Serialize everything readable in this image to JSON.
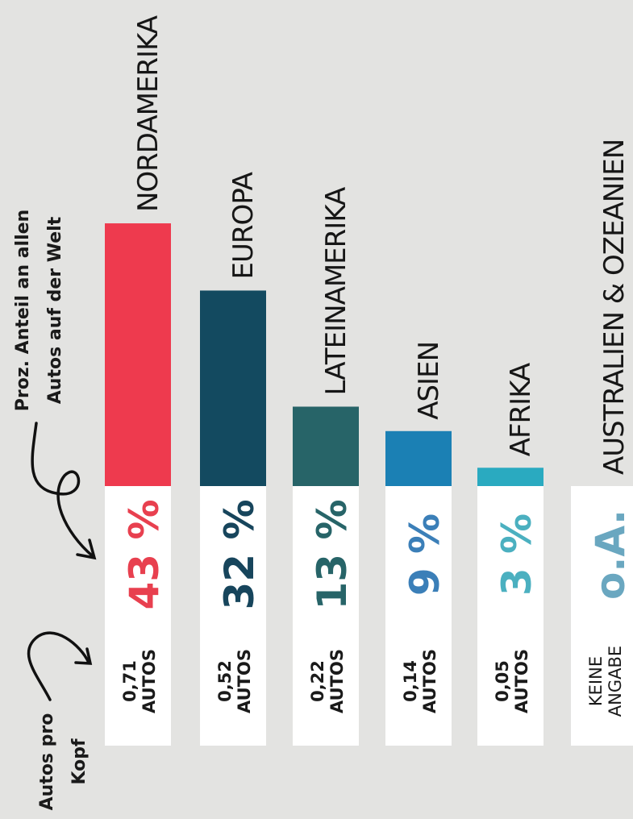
{
  "chart_data": {
    "type": "bar",
    "annotations": [
      [
        "Proz. Anteil an allen",
        "Autos auf der Welt"
      ],
      [
        "Autos pro",
        "Kopf"
      ]
    ],
    "categories": [
      "NORDAMERIKA",
      "EUROPA",
      "LATEINAMERIKA",
      "ASIEN",
      "AFRIKA",
      "AUSTRALIEN & OZEANIEN"
    ],
    "values": [
      43,
      32,
      13,
      9,
      3,
      null
    ],
    "value_labels": [
      "43 %",
      "32 %",
      "13 %",
      "9 %",
      "3 %",
      "o.A."
    ],
    "colors": [
      "#ee3a4e",
      "#134a60",
      "#276468",
      "#1b80b4",
      "#2aaac0",
      "#6aa7c0"
    ],
    "label_colors": [
      "#e8404f",
      "#17455c",
      "#276468",
      "#3b7fb8",
      "#4bb0c0",
      "#6aa7c0"
    ],
    "per_capita": [
      0.71,
      0.52,
      0.22,
      0.14,
      0.05,
      null
    ],
    "per_capita_labels": [
      [
        "0,71",
        "AUTOS"
      ],
      [
        "0,52",
        "AUTOS"
      ],
      [
        "0,22",
        "AUTOS"
      ],
      [
        "0,14",
        "AUTOS"
      ],
      [
        "0,05",
        "AUTOS"
      ],
      [
        "KEINE",
        "ANGABE"
      ]
    ]
  }
}
